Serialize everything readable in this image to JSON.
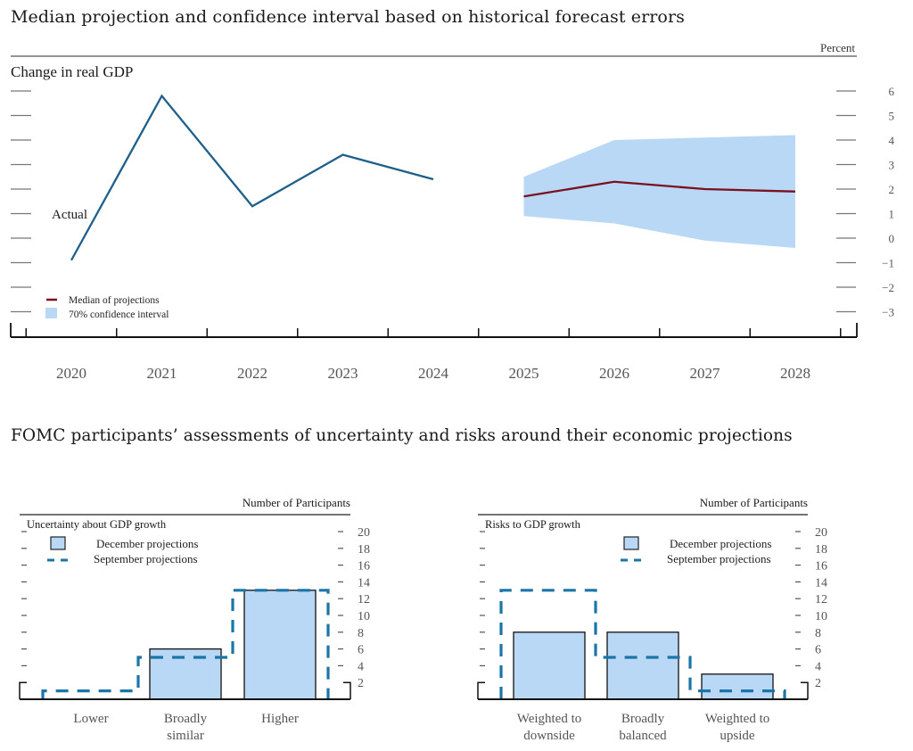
{
  "titles": {
    "top": "Median projection and confidence interval based on historical forecast errors",
    "bottom": "FOMC participants’ assessments of uncertainty and risks around their economic projections"
  },
  "colors": {
    "actual_line": "#1f5f8b",
    "median_line": "#7a1020",
    "band_fill": "#b8d8f5",
    "bar_fill": "#b8d8f5",
    "bar_edge": "#111111",
    "september_dash": "#1b75a8",
    "axis": "#111111",
    "tick_label": "#555555"
  },
  "chart_data": [
    {
      "type": "line",
      "title": "Change in real GDP",
      "unit_label": "Percent",
      "x": [
        "2020",
        "2021",
        "2022",
        "2023",
        "2024",
        "2025",
        "2026",
        "2027",
        "2028"
      ],
      "ylim": [
        -3,
        6
      ],
      "yticks": [
        "6",
        "5",
        "4",
        "3",
        "2",
        "1",
        "0",
        "−1",
        "−2",
        "−3"
      ],
      "ytick_values": [
        6,
        5,
        4,
        3,
        2,
        1,
        0,
        -1,
        -2,
        -3
      ],
      "series": [
        {
          "name": "Actual",
          "label": "Actual",
          "x": [
            "2020",
            "2021",
            "2022",
            "2023",
            "2024"
          ],
          "values": [
            -0.9,
            5.8,
            1.3,
            3.4,
            2.4
          ]
        },
        {
          "name": "Median of projections",
          "x": [
            "2025",
            "2026",
            "2027",
            "2028"
          ],
          "values": [
            1.7,
            2.3,
            2.0,
            1.9
          ]
        }
      ],
      "band": {
        "name": "70% confidence interval",
        "x": [
          "2025",
          "2026",
          "2027",
          "2028"
        ],
        "upper": [
          2.5,
          4.0,
          4.1,
          4.2
        ],
        "lower": [
          0.9,
          0.6,
          -0.1,
          -0.4
        ]
      },
      "legend": [
        "Median of projections",
        "70% confidence interval"
      ],
      "legend_position": "bottom-left",
      "grid": false
    },
    {
      "type": "bar",
      "title": "Uncertainty about GDP growth",
      "ylabel": "Number of Participants",
      "categories": [
        "Lower",
        "Broadly\nsimilar",
        "Higher"
      ],
      "category_lines": [
        [
          "Lower"
        ],
        [
          "Broadly",
          "similar"
        ],
        [
          "Higher"
        ]
      ],
      "ylim": [
        0,
        20
      ],
      "yticks": [
        "20",
        "18",
        "16",
        "14",
        "12",
        "10",
        "8",
        "6",
        "4",
        "2"
      ],
      "ytick_values": [
        20,
        18,
        16,
        14,
        12,
        10,
        8,
        6,
        4,
        2
      ],
      "series": [
        {
          "name": "December projections",
          "style": "bar",
          "values": [
            0,
            6,
            13
          ]
        },
        {
          "name": "September projections",
          "style": "dashed-step",
          "values": [
            1,
            5,
            13
          ]
        }
      ],
      "legend": [
        "December projections",
        "September projections"
      ],
      "legend_position": "top-left"
    },
    {
      "type": "bar",
      "title": "Risks to GDP growth",
      "ylabel": "Number of Participants",
      "categories": [
        "Weighted to\ndownside",
        "Broadly\nbalanced",
        "Weighted to\nupside"
      ],
      "category_lines": [
        [
          "Weighted to",
          "downside"
        ],
        [
          "Broadly",
          "balanced"
        ],
        [
          "Weighted to",
          "upside"
        ]
      ],
      "ylim": [
        0,
        20
      ],
      "yticks": [
        "20",
        "18",
        "16",
        "14",
        "12",
        "10",
        "8",
        "6",
        "4",
        "2"
      ],
      "ytick_values": [
        20,
        18,
        16,
        14,
        12,
        10,
        8,
        6,
        4,
        2
      ],
      "series": [
        {
          "name": "December projections",
          "style": "bar",
          "values": [
            8,
            8,
            3
          ]
        },
        {
          "name": "September projections",
          "style": "dashed-step",
          "values": [
            13,
            5,
            1
          ]
        }
      ],
      "legend": [
        "December projections",
        "September projections"
      ],
      "legend_position": "top-right"
    }
  ]
}
